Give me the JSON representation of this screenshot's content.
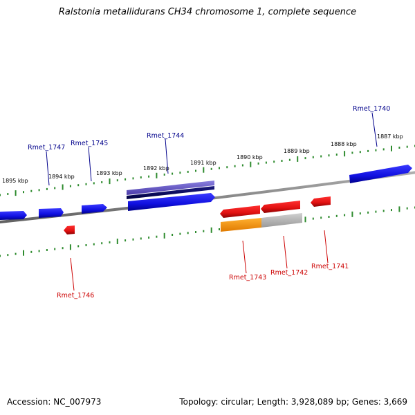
{
  "title": "Ralstonia metallidurans CH34 chromosome 1, complete sequence",
  "footer": {
    "accession": "Accession: NC_007973",
    "summary": "Topology: circular; Length: 3,928,089 bp; Genes: 3,669"
  },
  "colors": {
    "backbone": "#888888",
    "tick_mark": "#2e8b2e",
    "forward_gene": "#1010e0",
    "reverse_gene": "#e01010",
    "forward_label": "#00008b",
    "reverse_label": "#cc0000",
    "feature_orange": "#ff9900",
    "feature_grey": "#bbbbbb",
    "feature_purple": "#6a5acd",
    "feature_navy": "#000066"
  },
  "scale": {
    "ticks": [
      {
        "label": "1895 kbp"
      },
      {
        "label": "1894 kbp"
      },
      {
        "label": "1893 kbp"
      },
      {
        "label": "1892 kbp"
      },
      {
        "label": "1891 kbp"
      },
      {
        "label": "1890 kbp"
      },
      {
        "label": "1889 kbp"
      },
      {
        "label": "1888 kbp"
      },
      {
        "label": "1887 kbp"
      }
    ]
  },
  "genes": {
    "forward": [
      "Rmet_1747",
      "Rmet_1745",
      "Rmet_1744",
      "Rmet_1740"
    ],
    "reverse": [
      "Rmet_1746",
      "Rmet_1743",
      "Rmet_1742",
      "Rmet_1741"
    ]
  }
}
